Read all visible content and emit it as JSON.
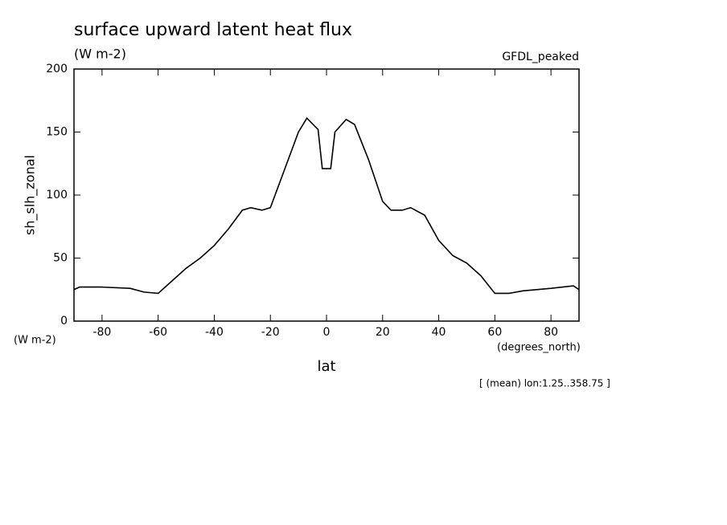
{
  "chart_data": {
    "type": "line",
    "title": "surface upward latent heat flux",
    "subtitle": "(W m-2)",
    "dataset": "GFDL_peaked",
    "y_label": "sh_slh_zonal",
    "y_units": "(W m-2)",
    "x_label": "lat",
    "x_units": "(degrees_north)",
    "annotation": "[ (mean) lon:1.25..358.75 ]",
    "color": "#000000",
    "x": [
      -90,
      -88,
      -80,
      -70,
      -65,
      -60,
      -55,
      -50,
      -45,
      -40,
      -35,
      -30,
      -27,
      -23,
      -20,
      -15,
      -10,
      -7,
      -3,
      -1.5,
      1.5,
      3,
      7,
      10,
      15,
      20,
      23,
      27,
      30,
      35,
      40,
      45,
      50,
      55,
      60,
      65,
      70,
      80,
      88,
      90
    ],
    "values": [
      25,
      27,
      27,
      26,
      23,
      22,
      32,
      42,
      50,
      60,
      73,
      88,
      90,
      88,
      90,
      120,
      150,
      161,
      152,
      121,
      121,
      150,
      160,
      156,
      128,
      95,
      88,
      88,
      90,
      84,
      64,
      52,
      46,
      36,
      22,
      22,
      24,
      26,
      28,
      25
    ],
    "xlim": [
      -90,
      90
    ],
    "xticks": [
      -80,
      -60,
      -40,
      -20,
      0,
      20,
      40,
      60,
      80
    ],
    "ylim": [
      0,
      200
    ],
    "yticks": [
      0,
      50,
      100,
      150,
      200
    ]
  }
}
